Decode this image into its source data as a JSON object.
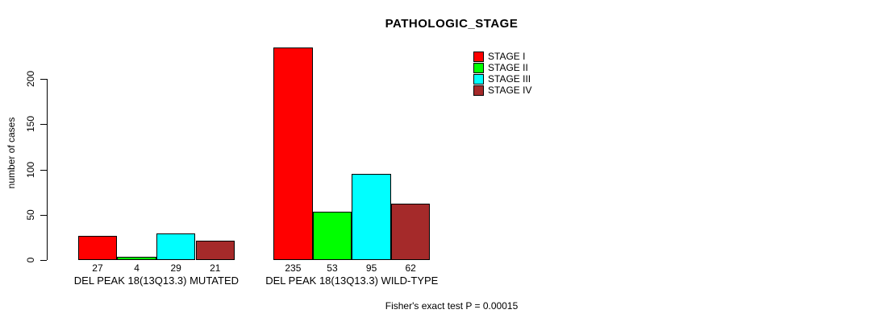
{
  "chart_data": {
    "type": "bar",
    "title": "PATHOLOGIC_STAGE",
    "ylabel": "number of cases",
    "xlabel": "",
    "ylim": [
      0,
      200
    ],
    "yticks": [
      0,
      50,
      100,
      150,
      200
    ],
    "grid": false,
    "legend_position": "top-right",
    "series": [
      {
        "name": "STAGE I",
        "color": "#FF0000"
      },
      {
        "name": "STAGE II",
        "color": "#00FF00"
      },
      {
        "name": "STAGE III",
        "color": "#00FFFF"
      },
      {
        "name": "STAGE IV",
        "color": "#A52A2A"
      }
    ],
    "groups": [
      {
        "label": "DEL PEAK 18(13Q13.3) MUTATED",
        "values": [
          27,
          4,
          29,
          21
        ]
      },
      {
        "label": "DEL PEAK 18(13Q13.3) WILD-TYPE",
        "values": [
          235,
          53,
          95,
          62
        ]
      }
    ],
    "footnote": "Fisher's exact test P = 0.00015"
  }
}
